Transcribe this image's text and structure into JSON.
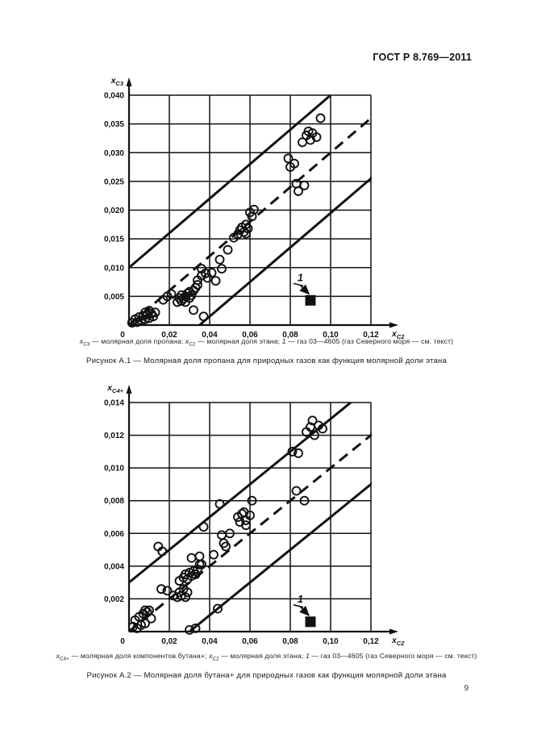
{
  "header": {
    "title": "ГОСТ Р 8.769—2011"
  },
  "footer": {
    "page_number": "9"
  },
  "figures": [
    {
      "legend_segments": [
        {
          "text": "x",
          "style": "var"
        },
        {
          "text": "C3",
          "style": "sub"
        },
        {
          "text": " — молярная доля пропана; ",
          "style": "plain"
        },
        {
          "text": "x",
          "style": "var"
        },
        {
          "text": "C2",
          "style": "sub"
        },
        {
          "text": " — молярная доля этана; ",
          "style": "plain"
        },
        {
          "text": "1",
          "style": "var"
        },
        {
          "text": " — газ 03—4605 (газ Северного моря — см. текст)",
          "style": "plain"
        }
      ],
      "title": "Рисунок А.1 — Молярная доля пропана для природных газов как функция молярной доли этана"
    },
    {
      "legend_segments": [
        {
          "text": "x",
          "style": "var"
        },
        {
          "text": "C4+",
          "style": "sub"
        },
        {
          "text": " — молярная доля компонентов бутана+; ",
          "style": "plain"
        },
        {
          "text": "x",
          "style": "var"
        },
        {
          "text": "C2",
          "style": "sub"
        },
        {
          "text": " — молярная доля этана; ",
          "style": "plain"
        },
        {
          "text": "1",
          "style": "var"
        },
        {
          "text": " — газ 03—4605 (газ Северного моря — см. текст)",
          "style": "plain"
        }
      ],
      "title": "Рисунок А.2 — Молярная доля бутана+ для природных газов как функция молярной доли этана"
    }
  ],
  "chart_data": [
    {
      "type": "scatter",
      "title": "Рисунок А.1 — Молярная доля пропана для природных газов как функция молярной доли этана",
      "xlabel": "xC2 (молярная доля этана)",
      "ylabel": "xC3 (молярная доля пропана)",
      "axis_display": {
        "y": {
          "base": "x",
          "sub": "C3"
        },
        "x": {
          "base": "x",
          "sub": "C2"
        }
      },
      "xlim": [
        0,
        0.12
      ],
      "ylim": [
        0,
        0.04
      ],
      "grid": true,
      "x_ticks": [
        {
          "v": 0,
          "label": "0"
        },
        {
          "v": 0.02,
          "label": "0,02"
        },
        {
          "v": 0.04,
          "label": "0,04"
        },
        {
          "v": 0.06,
          "label": "0,06"
        },
        {
          "v": 0.08,
          "label": "0,08"
        },
        {
          "v": 0.1,
          "label": "0,10"
        },
        {
          "v": 0.12,
          "label": "0,12"
        }
      ],
      "y_ticks": [
        {
          "v": 0,
          "label": ""
        },
        {
          "v": 0.005,
          "label": "0,005"
        },
        {
          "v": 0.01,
          "label": "0,010"
        },
        {
          "v": 0.015,
          "label": "0,015"
        },
        {
          "v": 0.02,
          "label": "0,020"
        },
        {
          "v": 0.025,
          "label": "0,025"
        },
        {
          "v": 0.03,
          "label": "0,030"
        },
        {
          "v": 0.035,
          "label": "0,035"
        },
        {
          "v": 0.04,
          "label": "0,040"
        }
      ],
      "lines": [
        {
          "style": "solid",
          "x1": 0,
          "y1": 0.01,
          "x2": 0.1,
          "y2": 0.04
        },
        {
          "style": "dashed",
          "x1": 0,
          "y1": 0,
          "x2": 0.125,
          "y2": 0.0375
        },
        {
          "style": "solid",
          "x1": 0.035,
          "y1": 0,
          "x2": 0.125,
          "y2": 0.027
        }
      ],
      "points": [
        [
          0.0015,
          0.0004
        ],
        [
          0.003,
          0.001
        ],
        [
          0.004,
          0.0005
        ],
        [
          0.005,
          0.0014
        ],
        [
          0.006,
          0.0008
        ],
        [
          0.007,
          0.0016
        ],
        [
          0.008,
          0.001
        ],
        [
          0.009,
          0.0018
        ],
        [
          0.01,
          0.0012
        ],
        [
          0.011,
          0.002
        ],
        [
          0.012,
          0.0015
        ],
        [
          0.013,
          0.0022
        ],
        [
          0.008,
          0.0022
        ],
        [
          0.01,
          0.0025
        ],
        [
          0.017,
          0.0044
        ],
        [
          0.019,
          0.005
        ],
        [
          0.021,
          0.0054
        ],
        [
          0.024,
          0.004
        ],
        [
          0.025,
          0.0047
        ],
        [
          0.026,
          0.0042
        ],
        [
          0.026,
          0.0052
        ],
        [
          0.027,
          0.0046
        ],
        [
          0.028,
          0.005
        ],
        [
          0.028,
          0.004
        ],
        [
          0.029,
          0.0055
        ],
        [
          0.03,
          0.0047
        ],
        [
          0.03,
          0.0058
        ],
        [
          0.031,
          0.0052
        ],
        [
          0.032,
          0.006
        ],
        [
          0.033,
          0.0065
        ],
        [
          0.034,
          0.007
        ],
        [
          0.032,
          0.0026
        ],
        [
          0.037,
          0.0015
        ],
        [
          0.034,
          0.0078
        ],
        [
          0.036,
          0.0086
        ],
        [
          0.038,
          0.009
        ],
        [
          0.039,
          0.0082
        ],
        [
          0.036,
          0.0098
        ],
        [
          0.041,
          0.0091
        ],
        [
          0.043,
          0.0077
        ],
        [
          0.045,
          0.0114
        ],
        [
          0.046,
          0.0098
        ],
        [
          0.049,
          0.0131
        ],
        [
          0.052,
          0.0152
        ],
        [
          0.054,
          0.0158
        ],
        [
          0.055,
          0.0165
        ],
        [
          0.056,
          0.017
        ],
        [
          0.057,
          0.0162
        ],
        [
          0.058,
          0.0175
        ],
        [
          0.059,
          0.0168
        ],
        [
          0.061,
          0.0189
        ],
        [
          0.058,
          0.0159
        ],
        [
          0.06,
          0.0196
        ],
        [
          0.062,
          0.0201
        ],
        [
          0.083,
          0.0246
        ],
        [
          0.087,
          0.0243
        ],
        [
          0.084,
          0.0233
        ],
        [
          0.079,
          0.029
        ],
        [
          0.082,
          0.0281
        ],
        [
          0.08,
          0.0275
        ],
        [
          0.086,
          0.0318
        ],
        [
          0.088,
          0.033
        ],
        [
          0.09,
          0.0322
        ],
        [
          0.091,
          0.0334
        ],
        [
          0.093,
          0.0327
        ],
        [
          0.089,
          0.0337
        ],
        [
          0.095,
          0.036
        ]
      ],
      "special_point": {
        "label": "1",
        "marker": "filled-square",
        "x": 0.09,
        "y": 0.0043
      }
    },
    {
      "type": "scatter",
      "title": "Рисунок А.2 — Молярная доля бутана+ для природных газов как функция молярной доли этана",
      "xlabel": "xC2 (молярная доля этана)",
      "ylabel": "xC4+ (молярная доля компонентов бутана+)",
      "axis_display": {
        "y": {
          "base": "x",
          "sub": "C4+"
        },
        "x": {
          "base": "x",
          "sub": "C2"
        }
      },
      "xlim": [
        0,
        0.12
      ],
      "ylim": [
        0,
        0.014
      ],
      "grid": true,
      "x_ticks": [
        {
          "v": 0,
          "label": "0"
        },
        {
          "v": 0.02,
          "label": "0,02"
        },
        {
          "v": 0.04,
          "label": "0,04"
        },
        {
          "v": 0.06,
          "label": "0,06"
        },
        {
          "v": 0.08,
          "label": "0,08"
        },
        {
          "v": 0.1,
          "label": "0,10"
        },
        {
          "v": 0.12,
          "label": "0,12"
        }
      ],
      "y_ticks": [
        {
          "v": 0,
          "label": ""
        },
        {
          "v": 0.002,
          "label": "0,002"
        },
        {
          "v": 0.004,
          "label": "0,004"
        },
        {
          "v": 0.006,
          "label": "0,006"
        },
        {
          "v": 0.008,
          "label": "0,008"
        },
        {
          "v": 0.01,
          "label": "0,010"
        },
        {
          "v": 0.012,
          "label": "0,012"
        },
        {
          "v": 0.014,
          "label": "0,014"
        }
      ],
      "lines": [
        {
          "style": "solid",
          "x1": 0,
          "y1": 0.003,
          "x2": 0.11,
          "y2": 0.014
        },
        {
          "style": "dashed",
          "x1": 0,
          "y1": 0,
          "x2": 0.125,
          "y2": 0.0125
        },
        {
          "style": "solid",
          "x1": 0.03,
          "y1": 0,
          "x2": 0.125,
          "y2": 0.0095
        }
      ],
      "points": [
        [
          0.002,
          0.0003
        ],
        [
          0.003,
          0.0007
        ],
        [
          0.004,
          0.0002
        ],
        [
          0.005,
          0.0009
        ],
        [
          0.006,
          0.0004
        ],
        [
          0.007,
          0.0011
        ],
        [
          0.008,
          0.0005
        ],
        [
          0.009,
          0.0012
        ],
        [
          0.01,
          0.0013
        ],
        [
          0.008,
          0.0013
        ],
        [
          0.011,
          0.0008
        ],
        [
          0.0145,
          0.0052
        ],
        [
          0.0165,
          0.0049
        ],
        [
          0.016,
          0.0026
        ],
        [
          0.019,
          0.0025
        ],
        [
          0.022,
          0.0022
        ],
        [
          0.024,
          0.0021
        ],
        [
          0.025,
          0.0024
        ],
        [
          0.026,
          0.0022
        ],
        [
          0.027,
          0.0026
        ],
        [
          0.028,
          0.0021
        ],
        [
          0.029,
          0.0024
        ],
        [
          0.025,
          0.0031
        ],
        [
          0.027,
          0.0033
        ],
        [
          0.028,
          0.0035
        ],
        [
          0.029,
          0.0032
        ],
        [
          0.03,
          0.0036
        ],
        [
          0.031,
          0.0034
        ],
        [
          0.032,
          0.0037
        ],
        [
          0.033,
          0.0035
        ],
        [
          0.034,
          0.0038
        ],
        [
          0.035,
          0.0041
        ],
        [
          0.031,
          0.0045
        ],
        [
          0.035,
          0.0046
        ],
        [
          0.036,
          0.0041
        ],
        [
          0.042,
          0.0047
        ],
        [
          0.037,
          0.0064
        ],
        [
          0.045,
          0.0078
        ],
        [
          0.046,
          0.0059
        ],
        [
          0.05,
          0.006
        ],
        [
          0.047,
          0.0054
        ],
        [
          0.048,
          0.0052
        ],
        [
          0.03,
          0.0001
        ],
        [
          0.033,
          0.0002
        ],
        [
          0.044,
          0.0014
        ],
        [
          0.054,
          0.007
        ],
        [
          0.055,
          0.0067
        ],
        [
          0.056,
          0.0072
        ],
        [
          0.057,
          0.0073
        ],
        [
          0.058,
          0.0068
        ],
        [
          0.06,
          0.0071
        ],
        [
          0.058,
          0.0065
        ],
        [
          0.061,
          0.008
        ],
        [
          0.081,
          0.011
        ],
        [
          0.084,
          0.0109
        ],
        [
          0.083,
          0.0086
        ],
        [
          0.087,
          0.008
        ],
        [
          0.088,
          0.0122
        ],
        [
          0.09,
          0.0125
        ],
        [
          0.092,
          0.012
        ],
        [
          0.094,
          0.0126
        ],
        [
          0.096,
          0.0124
        ],
        [
          0.091,
          0.0129
        ]
      ],
      "special_point": {
        "label": "1",
        "marker": "filled-square",
        "x": 0.09,
        "y": 0.0006
      }
    }
  ]
}
